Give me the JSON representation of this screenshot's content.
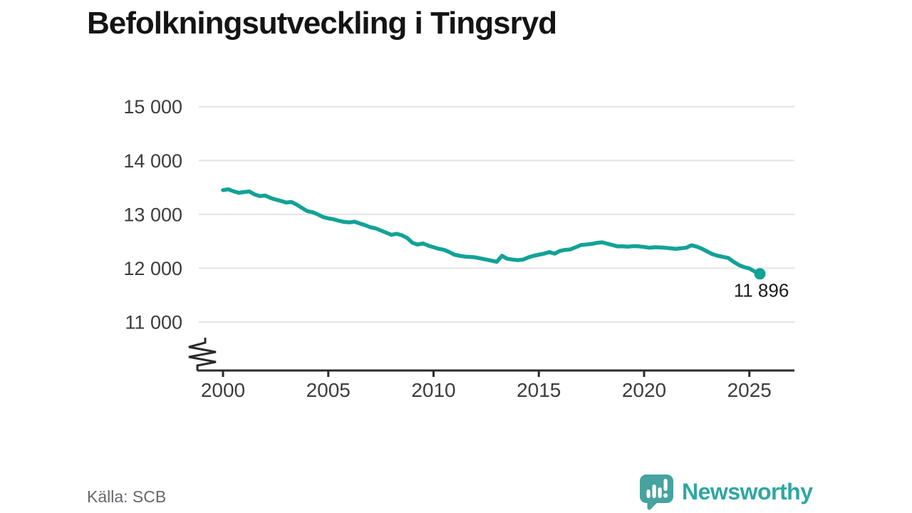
{
  "header": {
    "title": "Befolkningsutveckling i Tingsryd"
  },
  "chart_data": {
    "type": "line",
    "title": "Befolkningsutveckling i Tingsryd",
    "x_start": 2000,
    "x_step": 0.25,
    "x_unit": "year (quarterly population figures)",
    "ylim": [
      10600,
      15200
    ],
    "grid": "horizontal",
    "legend": "none",
    "axis_break": true,
    "y_ticks": [
      {
        "value": 15000,
        "label": "15 000"
      },
      {
        "value": 14000,
        "label": "14 000"
      },
      {
        "value": 13000,
        "label": "13 000"
      },
      {
        "value": 12000,
        "label": "12 000"
      },
      {
        "value": 11000,
        "label": "11 000"
      }
    ],
    "x_ticks": [
      {
        "value": 2000,
        "label": "2000"
      },
      {
        "value": 2005,
        "label": "2005"
      },
      {
        "value": 2010,
        "label": "2010"
      },
      {
        "value": 2015,
        "label": "2015"
      },
      {
        "value": 2020,
        "label": "2020"
      },
      {
        "value": 2025,
        "label": "2025"
      }
    ],
    "values": [
      13450,
      13465,
      13430,
      13400,
      13415,
      13425,
      13370,
      13340,
      13350,
      13305,
      13275,
      13250,
      13220,
      13230,
      13180,
      13120,
      13060,
      13040,
      13000,
      12950,
      12925,
      12910,
      12880,
      12860,
      12850,
      12865,
      12830,
      12800,
      12760,
      12740,
      12700,
      12660,
      12620,
      12640,
      12610,
      12560,
      12470,
      12440,
      12460,
      12420,
      12390,
      12360,
      12340,
      12300,
      12250,
      12230,
      12215,
      12210,
      12200,
      12180,
      12160,
      12140,
      12120,
      12230,
      12175,
      12160,
      12150,
      12160,
      12200,
      12230,
      12250,
      12270,
      12300,
      12270,
      12320,
      12340,
      12350,
      12390,
      12430,
      12440,
      12450,
      12470,
      12480,
      12455,
      12430,
      12405,
      12405,
      12400,
      12410,
      12405,
      12395,
      12380,
      12390,
      12385,
      12380,
      12370,
      12360,
      12370,
      12380,
      12425,
      12400,
      12360,
      12310,
      12260,
      12230,
      12210,
      12190,
      12120,
      12060,
      12020,
      11995,
      11940,
      11896
    ],
    "end_value": 11896,
    "end_label": "11 896"
  },
  "footer": {
    "source": "Källa: SCB",
    "brand": "Newsworthy"
  },
  "colors": {
    "line": "#13a296",
    "end_dot": "#13a296",
    "grid": "#e3e3e3",
    "axis": "#2b2b2b",
    "tick_text": "#3d3d3d",
    "title_text": "#141414",
    "annotation_text": "#1c1c1c",
    "source_text": "#67666e",
    "brand_teal": "#2ea7a1",
    "logo_bubble": "#46a39d"
  }
}
